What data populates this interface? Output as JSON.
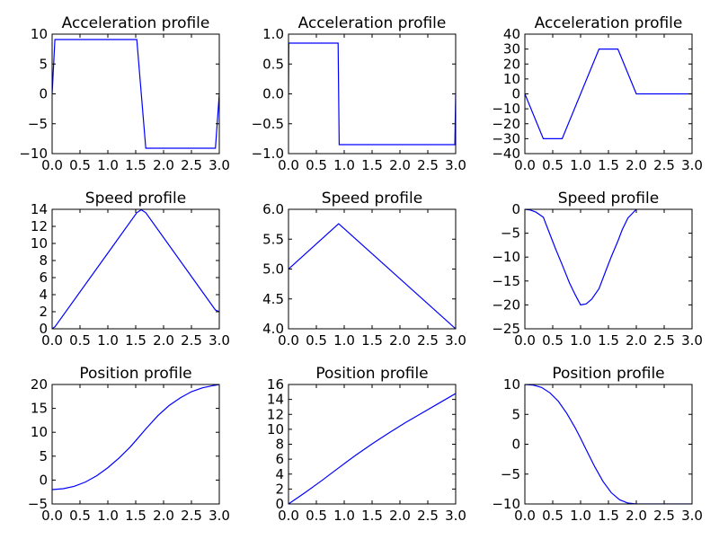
{
  "chart_data": [
    {
      "type": "line",
      "title": "Acceleration profile",
      "xlim": [
        0,
        3
      ],
      "ylim": [
        -10,
        10
      ],
      "xticks": [
        0,
        0.5,
        1,
        1.5,
        2,
        2.5,
        3
      ],
      "xtick_labels": [
        "0.0",
        "0.5",
        "1.0",
        "1.5",
        "2.0",
        "2.5",
        "3.0"
      ],
      "yticks": [
        -10,
        -5,
        0,
        5,
        10
      ],
      "ytick_labels": [
        "−10",
        "−5",
        "0",
        "5",
        "10"
      ],
      "series": [
        {
          "color": "#0000ff",
          "x": [
            0,
            0.05,
            1.52,
            1.68,
            2.93,
            3.0
          ],
          "y": [
            0,
            9.1,
            9.1,
            -9.1,
            -9.1,
            0
          ]
        }
      ]
    },
    {
      "type": "line",
      "title": "Acceleration profile",
      "xlim": [
        0,
        3
      ],
      "ylim": [
        -1,
        1
      ],
      "xticks": [
        0,
        0.5,
        1,
        1.5,
        2,
        2.5,
        3
      ],
      "xtick_labels": [
        "0.0",
        "0.5",
        "1.0",
        "1.5",
        "2.0",
        "2.5",
        "3.0"
      ],
      "yticks": [
        -1,
        -0.5,
        0,
        0.5,
        1
      ],
      "ytick_labels": [
        "−1.0",
        "−0.5",
        "0.0",
        "0.5",
        "1.0"
      ],
      "series": [
        {
          "color": "#0000ff",
          "x": [
            0,
            0.005,
            0.89,
            0.91,
            2.985,
            3.0
          ],
          "y": [
            0,
            0.85,
            0.85,
            -0.85,
            -0.85,
            0
          ]
        }
      ]
    },
    {
      "type": "line",
      "title": "Acceleration profile",
      "xlim": [
        0,
        3
      ],
      "ylim": [
        -40,
        40
      ],
      "xticks": [
        0,
        0.5,
        1,
        1.5,
        2,
        2.5,
        3
      ],
      "xtick_labels": [
        "0.0",
        "0.5",
        "1.0",
        "1.5",
        "2.0",
        "2.5",
        "3.0"
      ],
      "yticks": [
        -40,
        -30,
        -20,
        -10,
        0,
        10,
        20,
        30,
        40
      ],
      "ytick_labels": [
        "−40",
        "−30",
        "−20",
        "−10",
        "0",
        "10",
        "20",
        "30",
        "40"
      ],
      "series": [
        {
          "color": "#0000ff",
          "x": [
            0,
            0.33,
            0.67,
            1.33,
            1.67,
            2.0,
            3.0
          ],
          "y": [
            0,
            -30,
            -30,
            30,
            30,
            0,
            0
          ]
        }
      ]
    },
    {
      "type": "line",
      "title": "Speed profile",
      "xlim": [
        0,
        3
      ],
      "ylim": [
        0,
        14
      ],
      "xticks": [
        0,
        0.5,
        1,
        1.5,
        2,
        2.5,
        3
      ],
      "xtick_labels": [
        "0.0",
        "0.5",
        "1.0",
        "1.5",
        "2.0",
        "2.5",
        "3.0"
      ],
      "yticks": [
        0,
        2,
        4,
        6,
        8,
        10,
        12,
        14
      ],
      "ytick_labels": [
        "0",
        "2",
        "4",
        "6",
        "8",
        "10",
        "12",
        "14"
      ],
      "series": [
        {
          "color": "#0000ff",
          "x": [
            0,
            0.05,
            1.52,
            1.6,
            1.68,
            2.93,
            3.0
          ],
          "y": [
            0,
            0.23,
            13.6,
            13.95,
            13.6,
            2.2,
            2.0
          ]
        }
      ]
    },
    {
      "type": "line",
      "title": "Speed profile",
      "xlim": [
        0,
        3
      ],
      "ylim": [
        4,
        6
      ],
      "xticks": [
        0,
        0.5,
        1,
        1.5,
        2,
        2.5,
        3
      ],
      "xtick_labels": [
        "0.0",
        "0.5",
        "1.0",
        "1.5",
        "2.0",
        "2.5",
        "3.0"
      ],
      "yticks": [
        4,
        4.5,
        5,
        5.5,
        6
      ],
      "ytick_labels": [
        "4.0",
        "4.5",
        "5.0",
        "5.5",
        "6.0"
      ],
      "series": [
        {
          "color": "#0000ff",
          "x": [
            0,
            0.9,
            3.0
          ],
          "y": [
            5.0,
            5.76,
            4.0
          ]
        }
      ]
    },
    {
      "type": "line",
      "title": "Speed profile",
      "xlim": [
        0,
        3
      ],
      "ylim": [
        -25,
        0
      ],
      "xticks": [
        0,
        0.5,
        1,
        1.5,
        2,
        2.5,
        3
      ],
      "xtick_labels": [
        "0.0",
        "0.5",
        "1.0",
        "1.5",
        "2.0",
        "2.5",
        "3.0"
      ],
      "yticks": [
        -25,
        -20,
        -15,
        -10,
        -5,
        0
      ],
      "ytick_labels": [
        "−25",
        "−20",
        "−15",
        "−10",
        "−5",
        "0"
      ],
      "series": [
        {
          "color": "#0000ff",
          "x": [
            0,
            0.1,
            0.2,
            0.33,
            0.45,
            0.55,
            0.67,
            0.8,
            0.9,
            1.0,
            1.1,
            1.2,
            1.33,
            1.45,
            1.55,
            1.67,
            1.75,
            1.85,
            2.0
          ],
          "y": [
            0,
            -0.15,
            -0.6,
            -1.65,
            -5.25,
            -8.25,
            -11.6,
            -15.4,
            -17.8,
            -20.0,
            -19.8,
            -18.8,
            -16.6,
            -12.95,
            -9.95,
            -6.65,
            -4.2,
            -1.8,
            0
          ]
        }
      ]
    },
    {
      "type": "line",
      "title": "Position profile",
      "xlim": [
        0,
        3
      ],
      "ylim": [
        -5,
        20
      ],
      "xticks": [
        0,
        0.5,
        1,
        1.5,
        2,
        2.5,
        3
      ],
      "xtick_labels": [
        "0.0",
        "0.5",
        "1.0",
        "1.5",
        "2.0",
        "2.5",
        "3.0"
      ],
      "yticks": [
        -5,
        0,
        5,
        10,
        15,
        20
      ],
      "ytick_labels": [
        "−5",
        "0",
        "5",
        "10",
        "15",
        "20"
      ],
      "series": [
        {
          "color": "#0000ff",
          "x": [
            0,
            0.2,
            0.4,
            0.6,
            0.8,
            1.0,
            1.2,
            1.4,
            1.52,
            1.68,
            1.9,
            2.1,
            2.3,
            2.5,
            2.7,
            2.9,
            3.0
          ],
          "y": [
            -2.0,
            -1.8,
            -1.3,
            -0.4,
            0.9,
            2.6,
            4.6,
            6.9,
            8.5,
            10.7,
            13.5,
            15.6,
            17.2,
            18.5,
            19.3,
            19.8,
            20.0
          ]
        }
      ]
    },
    {
      "type": "line",
      "title": "Position profile",
      "xlim": [
        0,
        3
      ],
      "ylim": [
        0,
        16
      ],
      "xticks": [
        0,
        0.5,
        1,
        1.5,
        2,
        2.5,
        3
      ],
      "xtick_labels": [
        "0.0",
        "0.5",
        "1.0",
        "1.5",
        "2.0",
        "2.5",
        "3.0"
      ],
      "yticks": [
        0,
        2,
        4,
        6,
        8,
        10,
        12,
        14,
        16
      ],
      "ytick_labels": [
        "0",
        "2",
        "4",
        "6",
        "8",
        "10",
        "12",
        "14",
        "16"
      ],
      "series": [
        {
          "color": "#0000ff",
          "x": [
            0,
            0.3,
            0.6,
            0.9,
            1.2,
            1.5,
            1.8,
            2.1,
            2.4,
            2.7,
            3.0
          ],
          "y": [
            0,
            1.54,
            3.15,
            4.84,
            6.5,
            8.05,
            9.5,
            10.9,
            12.2,
            13.5,
            14.8
          ]
        }
      ]
    },
    {
      "type": "line",
      "title": "Position profile",
      "xlim": [
        0,
        3
      ],
      "ylim": [
        -10,
        10
      ],
      "xticks": [
        0,
        0.5,
        1,
        1.5,
        2,
        2.5,
        3
      ],
      "xtick_labels": [
        "0.0",
        "0.5",
        "1.0",
        "1.5",
        "2.0",
        "2.5",
        "3.0"
      ],
      "yticks": [
        -10,
        -5,
        0,
        5,
        10
      ],
      "ytick_labels": [
        "−10",
        "−5",
        "0",
        "5",
        "10"
      ],
      "series": [
        {
          "color": "#0000ff",
          "x": [
            0,
            0.15,
            0.3,
            0.45,
            0.6,
            0.75,
            0.9,
            1.0,
            1.1,
            1.25,
            1.4,
            1.55,
            1.7,
            1.85,
            2.0,
            3.0
          ],
          "y": [
            10,
            9.9,
            9.5,
            8.6,
            7.2,
            5.2,
            2.8,
            1.0,
            -0.9,
            -3.7,
            -6.2,
            -8.1,
            -9.3,
            -9.85,
            -10,
            -10
          ]
        }
      ]
    }
  ]
}
